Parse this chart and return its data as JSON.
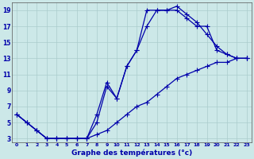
{
  "xlabel": "Graphe des températures (°c)",
  "bg_color": "#cce8e8",
  "grid_color": "#aacccc",
  "line_color": "#0000aa",
  "line1_x": [
    0,
    1,
    2,
    3,
    4,
    5,
    6,
    7,
    8,
    9,
    10,
    11,
    12,
    13,
    14,
    15,
    16,
    17,
    18,
    19,
    20,
    21,
    22,
    23
  ],
  "line1_y": [
    6,
    5,
    4,
    3,
    3,
    3,
    3,
    3,
    5,
    9.5,
    8,
    12,
    14,
    19,
    19,
    19,
    19.5,
    18.5,
    17.5,
    16,
    14.5,
    13.5,
    13,
    13
  ],
  "line2_x": [
    0,
    1,
    2,
    3,
    4,
    5,
    6,
    7,
    8,
    9,
    10,
    11,
    12,
    13,
    14,
    15,
    16,
    17,
    18,
    19,
    20,
    21,
    22,
    23
  ],
  "line2_y": [
    6,
    5,
    4,
    3,
    3,
    3,
    3,
    3,
    3.5,
    4,
    5,
    6,
    7,
    7.5,
    8.5,
    9.5,
    10.5,
    11,
    11.5,
    12,
    12.5,
    12.5,
    13,
    13
  ],
  "line3_x": [
    0,
    1,
    2,
    3,
    4,
    5,
    6,
    7,
    8,
    9,
    10,
    11,
    12,
    13,
    14,
    15,
    16,
    17,
    18,
    19,
    20,
    21,
    22,
    23
  ],
  "line3_y": [
    6,
    5,
    4,
    3,
    3,
    3,
    3,
    3,
    6,
    10,
    8,
    12,
    14,
    17,
    19,
    19,
    19,
    18,
    17,
    17,
    14,
    13.5,
    13,
    13
  ],
  "xlim": [
    -0.5,
    23.5
  ],
  "ylim": [
    2.5,
    20
  ],
  "xticks": [
    0,
    1,
    2,
    3,
    4,
    5,
    6,
    7,
    8,
    9,
    10,
    11,
    12,
    13,
    14,
    15,
    16,
    17,
    18,
    19,
    20,
    21,
    22,
    23
  ],
  "yticks": [
    3,
    5,
    7,
    9,
    11,
    13,
    15,
    17,
    19
  ],
  "xtick_fontsize": 4.5,
  "ytick_fontsize": 5.5,
  "xlabel_fontsize": 6.5,
  "marker_size": 2.0,
  "linewidth": 0.9
}
